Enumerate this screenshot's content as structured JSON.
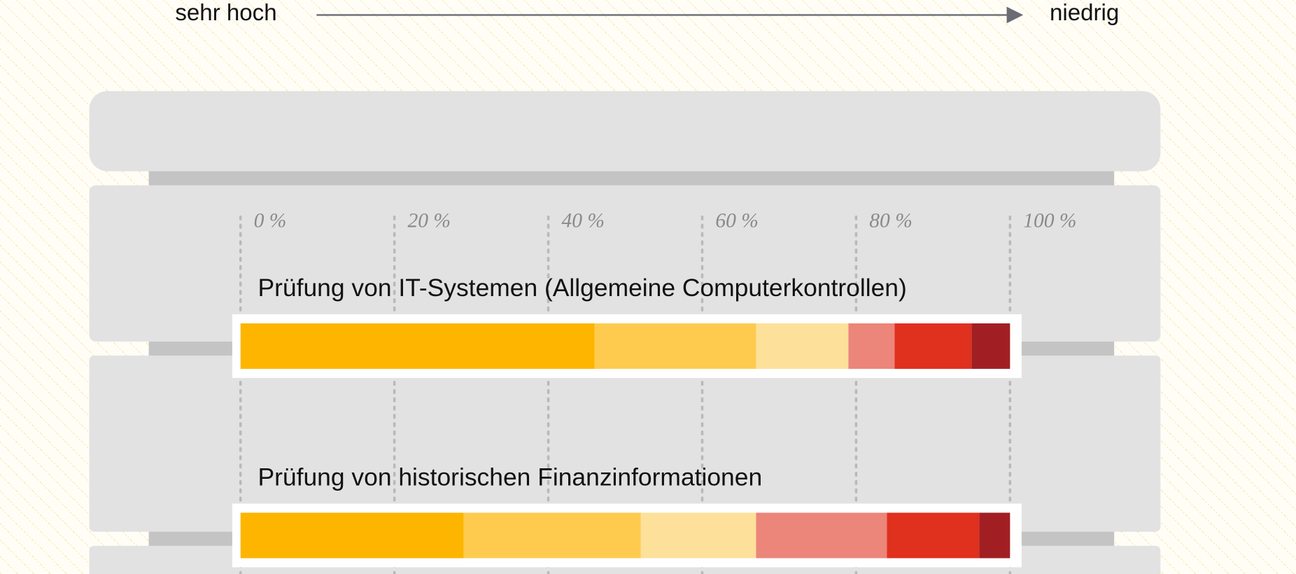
{
  "chart_data": {
    "type": "stacked-bar",
    "legend_start": "sehr hoch",
    "legend_end": "niedrig",
    "categories": [
      "Prüfung von IT-Systemen (Allgemeine Computerkontrollen)",
      "Prüfung von historischen Finanzinformationen"
    ],
    "series": [
      {
        "color": "#fdb500",
        "values": [
          46,
          29
        ]
      },
      {
        "color": "#fecb4f",
        "values": [
          21,
          23
        ]
      },
      {
        "color": "#fde09a",
        "values": [
          12,
          15
        ]
      },
      {
        "color": "#ec857a",
        "values": [
          6,
          17
        ]
      },
      {
        "color": "#e0301e",
        "values": [
          10,
          12
        ]
      },
      {
        "color": "#a11f23",
        "values": [
          5,
          4
        ]
      }
    ],
    "xlim": [
      0,
      100
    ],
    "xticks": [
      {
        "value": 0,
        "label": "0 %"
      },
      {
        "value": 20,
        "label": "20 %"
      },
      {
        "value": 40,
        "label": "40 %"
      },
      {
        "value": 60,
        "label": "60 %"
      },
      {
        "value": 80,
        "label": "80 %"
      },
      {
        "value": 100,
        "label": "100 %"
      }
    ],
    "grid": true
  }
}
